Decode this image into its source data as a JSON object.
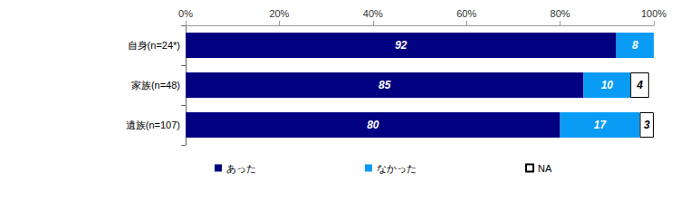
{
  "chart_data": {
    "type": "bar",
    "orientation": "horizontal",
    "stacked": true,
    "data_labels": true,
    "grid": false,
    "legend": "bottom",
    "categories": [
      "自身(n=24*)",
      "家族(n=48)",
      "遺族(n=107)"
    ],
    "series": [
      {
        "name": "あった",
        "color": "#000080",
        "values": [
          92,
          85,
          80
        ]
      },
      {
        "name": "なかった",
        "color": "#0a9cf5",
        "values": [
          8,
          10,
          17
        ]
      },
      {
        "name": "NA",
        "color": "#ffffff",
        "values": [
          null,
          4,
          3
        ]
      }
    ],
    "xlim": [
      0,
      100
    ],
    "xticks": [
      {
        "value": 0,
        "label": "0%"
      },
      {
        "value": 20,
        "label": "20%"
      },
      {
        "value": 40,
        "label": "40%"
      },
      {
        "value": 60,
        "label": "60%"
      },
      {
        "value": 80,
        "label": "80%"
      },
      {
        "value": 100,
        "label": "100%"
      }
    ]
  }
}
